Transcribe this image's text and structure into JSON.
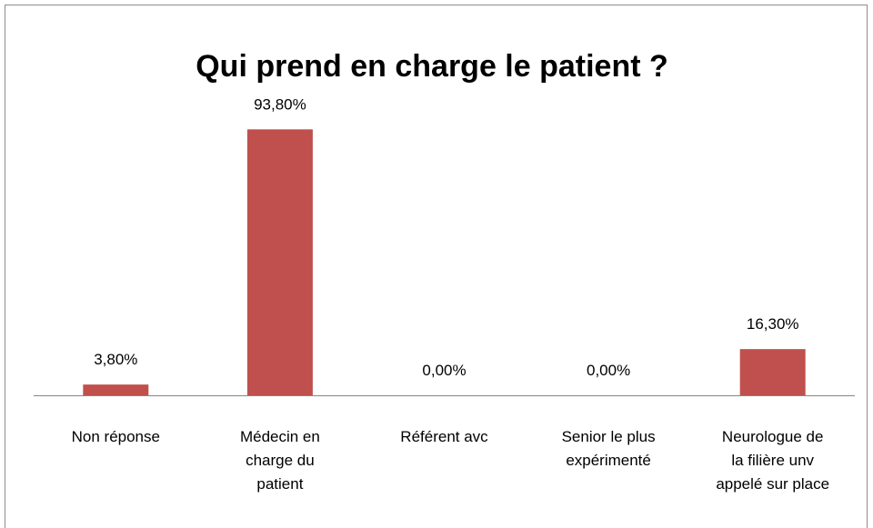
{
  "chart_data": {
    "type": "bar",
    "title": "Qui prend en charge le patient ?",
    "categories": [
      "Non réponse",
      "Médecin en\ncharge du\npatient",
      "Référent avc",
      "Senior le plus\nexpérimenté",
      "Neurologue de\nla filière unv\nappelé sur place"
    ],
    "values": [
      3.8,
      93.8,
      0,
      0,
      16.3
    ],
    "value_labels": [
      "3,80%",
      "93,80%",
      "0,00%",
      "0,00%",
      "16,30%"
    ],
    "color": "#c0504d",
    "ylim": [
      0,
      100
    ]
  }
}
